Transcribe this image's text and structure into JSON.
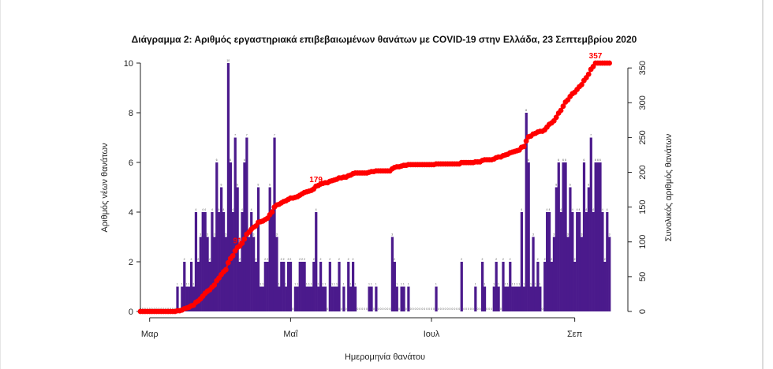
{
  "chart_data": {
    "type": "bar",
    "title": "Διάγραμμα 2: Αριθμός εργαστηριακά επιβεβαιωμένων θανάτων με COVID-19 στην Ελλάδα, 23 Σεπτεμβρίου 2020",
    "xlabel": "Ημερομηνία θανάτου",
    "ylabel": "Αριθμός νέων θανάτων",
    "y2label": "Συνολικός αριθμός θανάτων",
    "x_ticks": [
      {
        "label": "Μαρ",
        "day": 0
      },
      {
        "label": "Μαΐ",
        "day": 61
      },
      {
        "label": "Ιουλ",
        "day": 122
      },
      {
        "label": "Σεπ",
        "day": 184
      }
    ],
    "x_range_days": [
      -4,
      207
    ],
    "x_start_date": "2020-03-01",
    "ylim": [
      0,
      10
    ],
    "y_ticks": [
      0,
      2,
      4,
      6,
      8,
      10
    ],
    "y2lim": [
      0,
      357
    ],
    "y2_ticks": [
      0,
      50,
      100,
      150,
      200,
      250,
      300,
      350
    ],
    "bar_color": "#4b1a8c",
    "line_color": "#ff0000",
    "series": [
      {
        "name": "Αριθμός νέων θανάτων",
        "type": "bar",
        "start_date": "2020-02-26",
        "values": [
          0,
          0,
          0,
          0,
          0,
          0,
          0,
          0,
          0,
          0,
          0,
          0,
          0,
          0,
          0,
          0,
          1,
          0,
          1,
          2,
          1,
          1,
          2,
          1,
          4,
          2,
          3,
          4,
          4,
          3,
          2,
          4,
          3,
          6,
          4,
          5,
          4,
          3,
          10,
          6,
          4,
          7,
          5,
          2,
          4,
          6,
          7,
          3,
          4,
          3,
          2,
          5,
          1,
          1,
          2,
          2,
          5,
          4,
          7,
          3,
          1,
          2,
          2,
          1,
          2,
          2,
          0,
          1,
          1,
          2,
          2,
          2,
          1,
          1,
          1,
          2,
          4,
          1,
          2,
          1,
          1,
          0,
          2,
          1,
          1,
          1,
          2,
          0,
          1,
          0,
          2,
          1,
          2,
          1,
          0,
          0,
          0,
          0,
          0,
          1,
          1,
          0,
          1,
          0,
          0,
          0,
          0,
          0,
          0,
          3,
          2,
          1,
          0,
          1,
          1,
          0,
          1,
          0,
          0,
          0,
          0,
          0,
          0,
          0,
          0,
          0,
          0,
          0,
          1,
          0,
          0,
          0,
          0,
          0,
          0,
          0,
          0,
          0,
          0,
          2,
          0,
          0,
          0,
          0,
          0,
          1,
          0,
          0,
          2,
          1,
          0,
          0,
          0,
          1,
          2,
          1,
          0,
          2,
          1,
          1,
          2,
          1,
          1,
          1,
          1,
          4,
          1,
          8,
          6,
          1,
          3,
          1,
          2,
          1,
          0,
          2,
          4,
          4,
          2,
          3,
          5,
          6,
          4,
          6,
          6,
          3,
          5,
          4,
          2,
          4,
          4,
          3,
          6,
          4,
          5,
          7,
          4,
          6,
          6,
          6,
          4,
          2,
          4,
          3
        ]
      },
      {
        "name": "Συνολικός αριθμός θανάτων",
        "type": "line",
        "start_date": "2020-02-26",
        "values": [
          0,
          0,
          0,
          0,
          0,
          0,
          0,
          0,
          0,
          0,
          0,
          0,
          0,
          0,
          0,
          0,
          1,
          1,
          2,
          4,
          5,
          6,
          8,
          9,
          13,
          15,
          18,
          22,
          26,
          29,
          31,
          35,
          38,
          44,
          48,
          53,
          57,
          60,
          70,
          76,
          80,
          87,
          92,
          94,
          98,
          104,
          111,
          114,
          118,
          121,
          123,
          128,
          129,
          130,
          132,
          134,
          139,
          143,
          150,
          153,
          154,
          156,
          158,
          159,
          161,
          163,
          163,
          164,
          165,
          167,
          169,
          171,
          172,
          173,
          174,
          176,
          180,
          181,
          183,
          184,
          185,
          185,
          187,
          188,
          189,
          190,
          192,
          192,
          193,
          193,
          195,
          196,
          198,
          199,
          199,
          199,
          199,
          199,
          199,
          200,
          201,
          201,
          202,
          202,
          202,
          202,
          202,
          202,
          202,
          205,
          207,
          208,
          208,
          209,
          210,
          210,
          211,
          211,
          211,
          211,
          211,
          211,
          211,
          211,
          211,
          211,
          211,
          211,
          212,
          212,
          212,
          212,
          212,
          212,
          212,
          212,
          212,
          212,
          212,
          214,
          214,
          214,
          214,
          214,
          214,
          215,
          215,
          215,
          217,
          218,
          218,
          218,
          218,
          219,
          221,
          222,
          222,
          224,
          225,
          226,
          228,
          229,
          230,
          231,
          232,
          236,
          237,
          245,
          251,
          252,
          255,
          256,
          258,
          259,
          259,
          261,
          265,
          269,
          271,
          274,
          279,
          285,
          289,
          295,
          301,
          304,
          309,
          313,
          315,
          319,
          323,
          326,
          332,
          336,
          341,
          348,
          352,
          358,
          364,
          370,
          374,
          376,
          380,
          383
        ]
      }
    ],
    "annotations": [
      {
        "text": "91",
        "at_cumulative": 91
      },
      {
        "text": "179",
        "at_cumulative": 179
      },
      {
        "text": "357",
        "at_cumulative": 357
      }
    ]
  }
}
